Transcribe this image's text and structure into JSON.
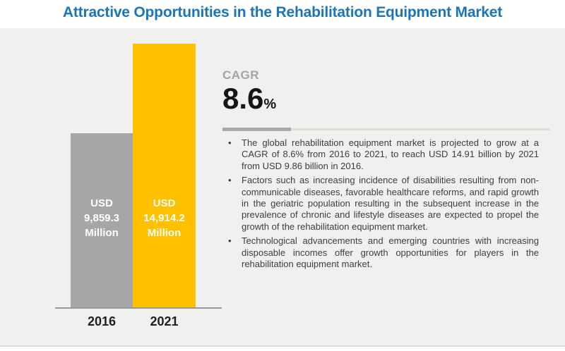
{
  "title": "Attractive Opportunities in the Rehabilitation Equipment Market",
  "cagr": {
    "label": "CAGR",
    "value": "8.6",
    "percent_sign": "%"
  },
  "chart_data": {
    "type": "bar",
    "title": "Attractive Opportunities in the Rehabilitation Equipment Market",
    "unit": "USD Million",
    "categories": [
      "2016",
      "2021"
    ],
    "values": [
      9859.3,
      14914.2
    ],
    "cagr_percent": 8.6,
    "ylim": [
      0,
      14914.2
    ],
    "grid": false,
    "legend": false,
    "bars": [
      {
        "year": "2016",
        "value": 9859.3,
        "color": "#a6a6a6",
        "label_currency": "USD",
        "label_value": "9,859.3",
        "label_unit": "Million"
      },
      {
        "year": "2021",
        "value": 14914.2,
        "color": "#ffc000",
        "label_currency": "USD",
        "label_value": "14,914.2",
        "label_unit": "Million"
      }
    ]
  },
  "bullets": [
    "The global rehabilitation equipment market is projected to grow at a CAGR of 8.6% from 2016 to 2021, to reach USD 14.91 billion by 2021 from USD 9.86 billion in 2016.",
    "Factors such as increasing incidence of disabilities resulting from non-communicable diseases, favorable healthcare reforms, and rapid growth in the geriatric population resulting in the subsequent increase in the prevalence of chronic and lifestyle diseases are expected to propel the growth of the rehabilitation equipment market.",
    "Technological advancements and emerging countries with increasing disposable incomes offer growth opportunities for players in the rehabilitation equipment market."
  ],
  "colors": {
    "title_blue": "#1a75bc",
    "bar_gray": "#a6a6a6",
    "bar_yellow": "#ffc000",
    "panel_background": "#f0f0ee",
    "bullet_text": "#3d3d3d"
  }
}
